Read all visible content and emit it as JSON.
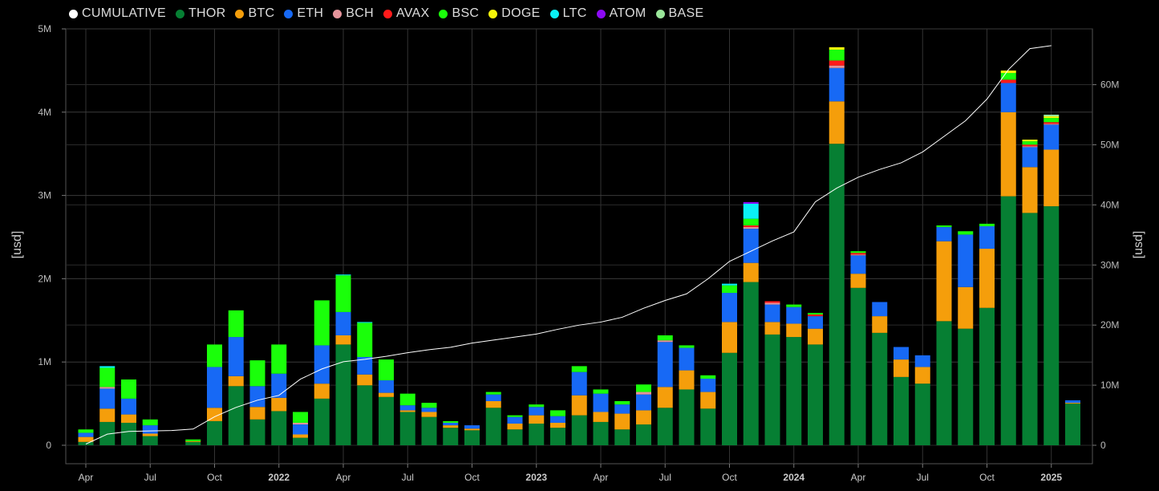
{
  "chart_data": {
    "type": "bar",
    "stacked": true,
    "ylabel_left": "[usd]",
    "ylabel_right": "[usd]",
    "ylim_left": [
      0,
      5000000
    ],
    "ylim_right": [
      0,
      69285714
    ],
    "left_ticks": [
      {
        "v": 0,
        "label": "0"
      },
      {
        "v": 1000000,
        "label": "1M"
      },
      {
        "v": 2000000,
        "label": "2M"
      },
      {
        "v": 3000000,
        "label": "3M"
      },
      {
        "v": 4000000,
        "label": "4M"
      },
      {
        "v": 5000000,
        "label": "5M"
      }
    ],
    "right_ticks": [
      {
        "v": 0,
        "label": "0"
      },
      {
        "v": 10000000,
        "label": "10M"
      },
      {
        "v": 20000000,
        "label": "20M"
      },
      {
        "v": 30000000,
        "label": "30M"
      },
      {
        "v": 40000000,
        "label": "40M"
      },
      {
        "v": 50000000,
        "label": "50M"
      },
      {
        "v": 60000000,
        "label": "60M"
      }
    ],
    "x_ticks": [
      {
        "at": 0,
        "label": "Apr",
        "bold": false
      },
      {
        "at": 3,
        "label": "Jul",
        "bold": false
      },
      {
        "at": 6,
        "label": "Oct",
        "bold": false
      },
      {
        "at": 9,
        "label": "2022",
        "bold": true
      },
      {
        "at": 12,
        "label": "Apr",
        "bold": false
      },
      {
        "at": 15,
        "label": "Jul",
        "bold": false
      },
      {
        "at": 18,
        "label": "Oct",
        "bold": false
      },
      {
        "at": 21,
        "label": "2023",
        "bold": true
      },
      {
        "at": 24,
        "label": "Apr",
        "bold": false
      },
      {
        "at": 27,
        "label": "Jul",
        "bold": false
      },
      {
        "at": 30,
        "label": "Oct",
        "bold": false
      },
      {
        "at": 33,
        "label": "2024",
        "bold": true
      },
      {
        "at": 36,
        "label": "Apr",
        "bold": false
      },
      {
        "at": 39,
        "label": "Jul",
        "bold": false
      },
      {
        "at": 42,
        "label": "Oct",
        "bold": false
      },
      {
        "at": 45,
        "label": "2025",
        "bold": true
      }
    ],
    "categories": [
      "2021-04",
      "2021-05",
      "2021-06",
      "2021-07",
      "2021-08",
      "2021-09",
      "2021-10",
      "2021-11",
      "2021-12",
      "2022-01",
      "2022-02",
      "2022-03",
      "2022-04",
      "2022-05",
      "2022-06",
      "2022-07",
      "2022-08",
      "2022-09",
      "2022-10",
      "2022-11",
      "2022-12",
      "2023-01",
      "2023-02",
      "2023-03",
      "2023-04",
      "2023-05",
      "2023-06",
      "2023-07",
      "2023-08",
      "2023-09",
      "2023-10",
      "2023-11",
      "2023-12",
      "2024-01",
      "2024-02",
      "2024-03",
      "2024-04",
      "2024-05",
      "2024-06",
      "2024-07",
      "2024-08",
      "2024-09",
      "2024-10",
      "2024-11",
      "2024-12",
      "2025-01",
      "2025-02"
    ],
    "series": [
      {
        "name": "THOR",
        "color": "#067f33",
        "values": [
          40000,
          280000,
          270000,
          110000,
          0,
          40000,
          290000,
          710000,
          310000,
          410000,
          90000,
          560000,
          1210000,
          720000,
          580000,
          400000,
          340000,
          210000,
          180000,
          450000,
          190000,
          260000,
          210000,
          360000,
          280000,
          190000,
          250000,
          450000,
          670000,
          440000,
          1110000,
          1960000,
          1330000,
          1300000,
          1210000,
          3620000,
          1890000,
          1350000,
          820000,
          740000,
          1490000,
          1400000,
          1650000,
          2990000,
          2790000,
          2870000,
          500000
        ]
      },
      {
        "name": "BTC",
        "color": "#f59e0b",
        "values": [
          60000,
          160000,
          100000,
          30000,
          0,
          10000,
          160000,
          120000,
          150000,
          160000,
          40000,
          180000,
          110000,
          130000,
          50000,
          20000,
          60000,
          30000,
          20000,
          80000,
          70000,
          100000,
          60000,
          240000,
          120000,
          190000,
          170000,
          250000,
          230000,
          200000,
          370000,
          230000,
          150000,
          160000,
          190000,
          510000,
          170000,
          200000,
          210000,
          200000,
          960000,
          500000,
          710000,
          1010000,
          550000,
          680000,
          10000
        ]
      },
      {
        "name": "ETH",
        "color": "#1769f5",
        "values": [
          50000,
          240000,
          190000,
          100000,
          0,
          0,
          490000,
          470000,
          250000,
          290000,
          120000,
          460000,
          280000,
          210000,
          150000,
          60000,
          50000,
          30000,
          40000,
          80000,
          80000,
          100000,
          80000,
          280000,
          220000,
          110000,
          190000,
          540000,
          270000,
          160000,
          350000,
          410000,
          210000,
          200000,
          150000,
          400000,
          220000,
          170000,
          150000,
          140000,
          170000,
          630000,
          270000,
          350000,
          240000,
          300000,
          30000
        ]
      },
      {
        "name": "BCH",
        "color": "#e5949b",
        "values": [
          0,
          20000,
          0,
          0,
          0,
          0,
          0,
          0,
          0,
          0,
          20000,
          0,
          0,
          0,
          0,
          0,
          0,
          0,
          0,
          0,
          0,
          0,
          0,
          0,
          0,
          0,
          30000,
          20000,
          0,
          0,
          0,
          20000,
          20000,
          0,
          0,
          30000,
          10000,
          0,
          0,
          0,
          0,
          0,
          0,
          0,
          10000,
          10000,
          0
        ]
      },
      {
        "name": "AVAX",
        "color": "#ff1a1a",
        "values": [
          0,
          0,
          0,
          0,
          0,
          0,
          0,
          0,
          0,
          0,
          0,
          0,
          0,
          0,
          0,
          0,
          0,
          0,
          0,
          0,
          0,
          0,
          0,
          0,
          0,
          0,
          0,
          0,
          0,
          0,
          0,
          20000,
          20000,
          0,
          20000,
          60000,
          20000,
          0,
          0,
          0,
          0,
          0,
          0,
          40000,
          20000,
          20000,
          0
        ]
      },
      {
        "name": "BSC",
        "color": "#1aff0a",
        "values": [
          40000,
          230000,
          230000,
          70000,
          0,
          20000,
          270000,
          320000,
          310000,
          350000,
          130000,
          540000,
          440000,
          410000,
          250000,
          140000,
          60000,
          20000,
          0,
          30000,
          20000,
          30000,
          70000,
          70000,
          50000,
          40000,
          90000,
          60000,
          30000,
          40000,
          90000,
          80000,
          0,
          30000,
          20000,
          130000,
          20000,
          0,
          0,
          0,
          20000,
          40000,
          30000,
          80000,
          40000,
          50000,
          0
        ]
      },
      {
        "name": "DOGE",
        "color": "#f5f50a",
        "values": [
          0,
          0,
          0,
          0,
          0,
          0,
          0,
          0,
          0,
          0,
          0,
          0,
          0,
          0,
          0,
          0,
          0,
          0,
          0,
          0,
          0,
          0,
          0,
          0,
          0,
          0,
          0,
          0,
          0,
          0,
          0,
          0,
          0,
          0,
          0,
          30000,
          0,
          0,
          0,
          0,
          0,
          0,
          0,
          30000,
          20000,
          20000,
          0
        ]
      },
      {
        "name": "LTC",
        "color": "#0af0f5",
        "values": [
          0,
          20000,
          0,
          0,
          0,
          0,
          0,
          0,
          0,
          0,
          0,
          0,
          10000,
          10000,
          0,
          0,
          0,
          0,
          0,
          0,
          0,
          0,
          0,
          0,
          0,
          0,
          0,
          0,
          0,
          0,
          20000,
          180000,
          0,
          0,
          0,
          0,
          0,
          0,
          0,
          0,
          0,
          0,
          0,
          0,
          0,
          0,
          0
        ]
      },
      {
        "name": "ATOM",
        "color": "#8c0af5",
        "values": [
          0,
          0,
          0,
          0,
          0,
          0,
          0,
          0,
          0,
          0,
          0,
          0,
          0,
          0,
          0,
          0,
          0,
          0,
          0,
          0,
          0,
          0,
          0,
          0,
          0,
          0,
          0,
          0,
          0,
          0,
          0,
          20000,
          0,
          0,
          0,
          0,
          0,
          0,
          0,
          0,
          0,
          0,
          0,
          0,
          0,
          0,
          0
        ]
      },
      {
        "name": "BASE",
        "color": "#9ae69a",
        "values": [
          0,
          0,
          0,
          0,
          0,
          0,
          0,
          0,
          0,
          0,
          0,
          0,
          0,
          0,
          0,
          0,
          0,
          0,
          0,
          0,
          0,
          0,
          0,
          0,
          0,
          0,
          0,
          0,
          0,
          0,
          0,
          0,
          0,
          0,
          0,
          0,
          0,
          0,
          0,
          0,
          0,
          0,
          0,
          0,
          0,
          20000,
          0
        ]
      }
    ],
    "cumulative": {
      "name": "CUMULATIVE",
      "color": "#ffffff",
      "values": [
        200000,
        1850000,
        2300000,
        2380000,
        2450000,
        2700000,
        4750000,
        6300000,
        7500000,
        8300000,
        11000000,
        12700000,
        13900000,
        14300000,
        14800000,
        15400000,
        15900000,
        16300000,
        17000000,
        17500000,
        18000000,
        18500000,
        19300000,
        20000000,
        20500000,
        21300000,
        22800000,
        24100000,
        25200000,
        27700000,
        30600000,
        32300000,
        34000000,
        35500000,
        40500000,
        42800000,
        44600000,
        45900000,
        47000000,
        48800000,
        51400000,
        54000000,
        57600000,
        62500000,
        66000000,
        66500000,
        0
      ]
    }
  }
}
